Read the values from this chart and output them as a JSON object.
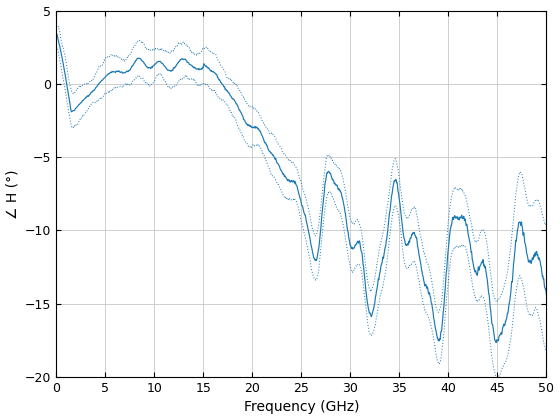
{
  "title": "",
  "xlabel": "Frequency (GHz)",
  "ylabel": "∠ H (°)",
  "xlim": [
    0,
    50
  ],
  "ylim": [
    -20,
    5
  ],
  "yticks": [
    -20,
    -15,
    -10,
    -5,
    0,
    5
  ],
  "xticks": [
    0,
    5,
    10,
    15,
    20,
    25,
    30,
    35,
    40,
    45,
    50
  ],
  "line_color": "#1a78b4",
  "band_color": "#1a78b4",
  "background_color": "#ffffff",
  "grid_color": "#c8c8c8",
  "figsize": [
    5.6,
    4.2
  ],
  "dpi": 100
}
